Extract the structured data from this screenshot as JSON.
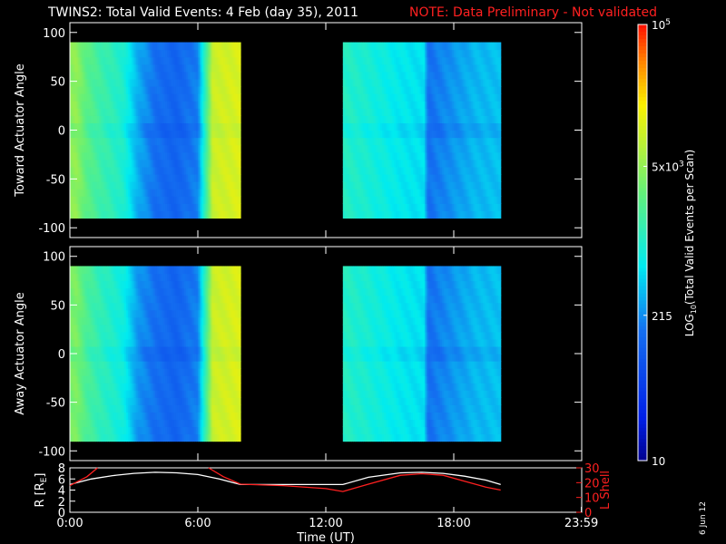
{
  "header": {
    "title": "TWINS2: Total Valid Events:  4 Feb (day  35), 2011",
    "note": "NOTE: Data Preliminary - Not validated",
    "note_color": "#ff2020"
  },
  "date_stamp": "6 Jun 12",
  "chart_data": [
    {
      "type": "heatmap",
      "ylabel": "Toward Actuator Angle",
      "ylim": [
        -110,
        110
      ],
      "yticks": [
        100,
        50,
        0,
        -50,
        -100
      ],
      "xlim": [
        0,
        24
      ],
      "coverage_hours": [
        [
          0.0,
          8.0
        ],
        [
          12.8,
          20.2
        ]
      ],
      "angle_range": [
        -90,
        90
      ],
      "log10_events_profile": [
        {
          "t": 0.0,
          "v": 3.65
        },
        {
          "t": 0.3,
          "v": 3.7
        },
        {
          "t": 0.8,
          "v": 3.4
        },
        {
          "t": 1.5,
          "v": 3.2
        },
        {
          "t": 2.5,
          "v": 3.0
        },
        {
          "t": 3.2,
          "v": 2.5
        },
        {
          "t": 4.0,
          "v": 2.2
        },
        {
          "t": 5.0,
          "v": 2.1
        },
        {
          "t": 6.0,
          "v": 2.3
        },
        {
          "t": 6.7,
          "v": 4.0
        },
        {
          "t": 8.0,
          "v": 4.1
        },
        {
          "t": 12.8,
          "v": 3.05
        },
        {
          "t": 13.5,
          "v": 3.0
        },
        {
          "t": 14.5,
          "v": 2.9
        },
        {
          "t": 15.5,
          "v": 2.8
        },
        {
          "t": 16.6,
          "v": 2.75
        },
        {
          "t": 16.8,
          "v": 2.2
        },
        {
          "t": 18.0,
          "v": 2.4
        },
        {
          "t": 19.0,
          "v": 2.55
        },
        {
          "t": 20.2,
          "v": 2.6
        }
      ]
    },
    {
      "type": "heatmap",
      "ylabel": "Away Actuator Angle",
      "ylim": [
        -110,
        110
      ],
      "yticks": [
        100,
        50,
        0,
        -50,
        -100
      ],
      "xlim": [
        0,
        24
      ],
      "coverage_hours": [
        [
          0.0,
          8.0
        ],
        [
          12.8,
          20.2
        ]
      ],
      "angle_range": [
        -90,
        90
      ],
      "log10_events_profile": [
        {
          "t": 0.0,
          "v": 3.55
        },
        {
          "t": 0.3,
          "v": 3.6
        },
        {
          "t": 0.8,
          "v": 3.3
        },
        {
          "t": 1.5,
          "v": 3.1
        },
        {
          "t": 2.5,
          "v": 2.9
        },
        {
          "t": 3.2,
          "v": 2.4
        },
        {
          "t": 4.0,
          "v": 2.2
        },
        {
          "t": 5.0,
          "v": 2.1
        },
        {
          "t": 6.0,
          "v": 2.3
        },
        {
          "t": 6.7,
          "v": 4.0
        },
        {
          "t": 8.0,
          "v": 4.1
        },
        {
          "t": 12.8,
          "v": 3.05
        },
        {
          "t": 13.5,
          "v": 3.0
        },
        {
          "t": 14.5,
          "v": 2.9
        },
        {
          "t": 15.5,
          "v": 2.8
        },
        {
          "t": 16.6,
          "v": 2.75
        },
        {
          "t": 16.8,
          "v": 2.2
        },
        {
          "t": 18.0,
          "v": 2.4
        },
        {
          "t": 19.0,
          "v": 2.55
        },
        {
          "t": 20.2,
          "v": 2.6
        }
      ]
    },
    {
      "type": "line",
      "xlabel": "Time (UT)",
      "xlim": [
        0,
        24
      ],
      "xticks": [
        "0:00",
        "6:00",
        "12:00",
        "18:00",
        "23:59"
      ],
      "xtick_values": [
        0,
        6,
        12,
        18,
        23.983
      ],
      "left_axis": {
        "ylabel": "R [R",
        "ylabel_sub": "E",
        "ylabel_close": "]",
        "ylim": [
          0,
          8
        ],
        "yticks": [
          8,
          6,
          4,
          2,
          0
        ]
      },
      "right_axis": {
        "ylabel": "L Shell",
        "ylim": [
          0,
          30
        ],
        "yticks": [
          30,
          20,
          10,
          0
        ]
      },
      "series": [
        {
          "axis": "left",
          "color": "#ffffff",
          "segments": [
            [
              [
                0.0,
                5.0
              ],
              [
                1.0,
                6.0
              ],
              [
                2.0,
                6.6
              ],
              [
                3.0,
                7.0
              ],
              [
                4.0,
                7.2
              ],
              [
                5.0,
                7.1
              ],
              [
                6.0,
                6.8
              ],
              [
                7.0,
                6.0
              ],
              [
                8.0,
                5.0
              ],
              [
                10.0,
                5.0
              ],
              [
                12.0,
                5.0
              ],
              [
                12.8,
                5.0
              ],
              [
                14.0,
                6.3
              ],
              [
                15.5,
                7.1
              ],
              [
                16.5,
                7.2
              ],
              [
                17.5,
                7.0
              ],
              [
                18.5,
                6.5
              ],
              [
                19.5,
                5.8
              ],
              [
                20.2,
                5.0
              ]
            ]
          ]
        },
        {
          "axis": "right",
          "color": "#ff2020",
          "segments": [
            [
              [
                0.0,
                18.0
              ],
              [
                0.8,
                24.0
              ],
              [
                1.3,
                30.0
              ]
            ],
            [
              [
                6.5,
                30.0
              ],
              [
                7.2,
                24.0
              ],
              [
                8.0,
                19.0
              ],
              [
                10.0,
                18.0
              ],
              [
                12.0,
                16.0
              ],
              [
                12.8,
                14.0
              ],
              [
                14.0,
                19.0
              ],
              [
                15.5,
                25.0
              ],
              [
                16.5,
                26.0
              ],
              [
                17.5,
                25.0
              ],
              [
                18.5,
                21.0
              ],
              [
                19.5,
                17.0
              ],
              [
                20.2,
                15.0
              ]
            ]
          ]
        }
      ]
    }
  ],
  "colorbar": {
    "label": "LOG",
    "label_sub": "10",
    "label_rest": "(Total Valid  Events per Scan)",
    "log10_range": [
      1,
      5
    ],
    "ticks": [
      {
        "value": 5,
        "base": "10",
        "exp": "5"
      },
      {
        "value": 3.69897,
        "base": "5x10",
        "exp": "3"
      },
      {
        "value": 2.33244,
        "base": "215",
        "exp": ""
      },
      {
        "value": 1,
        "base": "10",
        "exp": ""
      }
    ]
  }
}
